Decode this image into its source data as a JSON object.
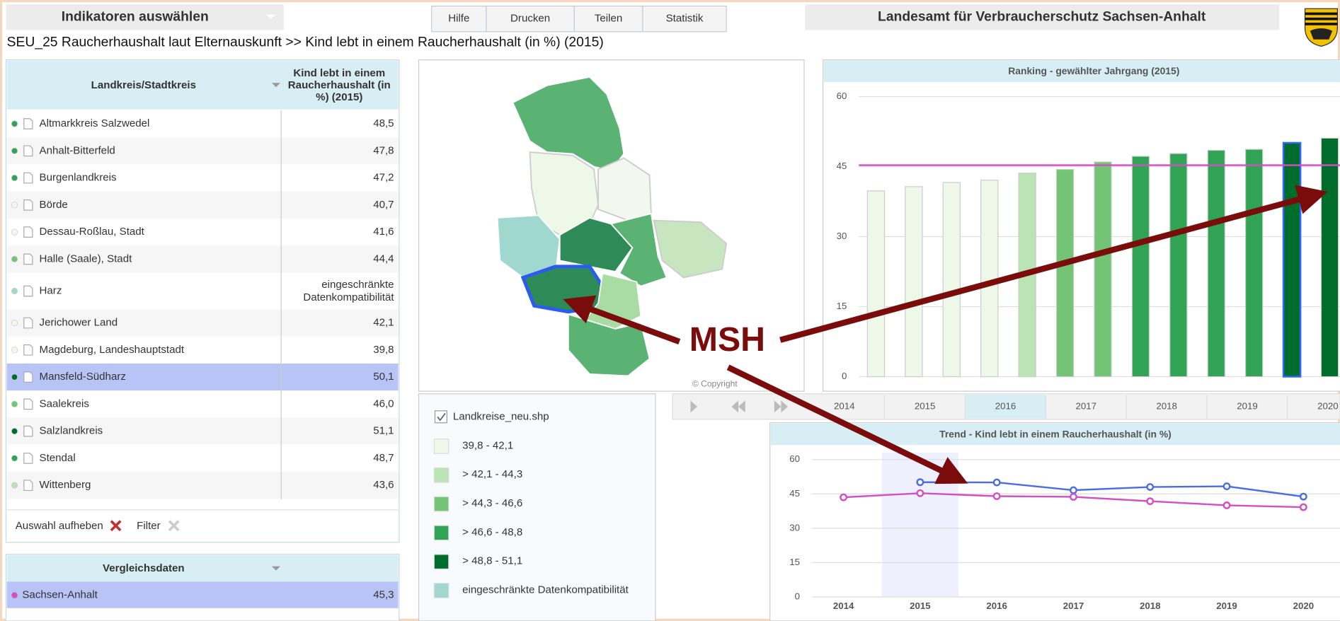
{
  "header": {
    "indicator_select": "Indikatoren auswählen",
    "buttons": [
      "Hilfe",
      "Drucken",
      "Teilen",
      "Statistik"
    ],
    "agency": "Landesamt für Verbraucherschutz Sachsen-Anhalt",
    "subtitle": "SEU_25 Raucherhaushalt laut Elternauskunft >> Kind lebt in einem Raucherhaushalt (in %) (2015)"
  },
  "table": {
    "header_name": "Landkreis/Stadtkreis",
    "header_value": [
      "Kind lebt in einem",
      "Raucherhaushalt (in",
      "%) (2015)"
    ],
    "rows": [
      {
        "name": "Altmarkkreis Salzwedel",
        "value": "48,5",
        "dot": "#31a354"
      },
      {
        "name": "Anhalt-Bitterfeld",
        "value": "47,8",
        "dot": "#31a354"
      },
      {
        "name": "Burgenlandkreis",
        "value": "47,2",
        "dot": "#31a354"
      },
      {
        "name": "Börde",
        "value": "40,7",
        "dot": "#f2f8ee"
      },
      {
        "name": "Dessau-Roßlau, Stadt",
        "value": "41,6",
        "dot": "#f2f8ee"
      },
      {
        "name": "Halle (Saale), Stadt",
        "value": "44,4",
        "dot": "#74c476"
      },
      {
        "name": "Harz",
        "value": [
          "eingeschränkte",
          "Datenkompatibilität"
        ],
        "dot": "#a0d8d0"
      },
      {
        "name": "Jerichower Land",
        "value": "42,1",
        "dot": "#f2f8ee"
      },
      {
        "name": "Magdeburg, Landeshauptstadt",
        "value": "39,8",
        "dot": "#f2f8ee"
      },
      {
        "name": "Mansfeld-Südharz",
        "value": "50,1",
        "dot": "#006d2c",
        "selected": true
      },
      {
        "name": "Saalekreis",
        "value": "46,0",
        "dot": "#74c476"
      },
      {
        "name": "Salzlandkreis",
        "value": "51,1",
        "dot": "#006d2c"
      },
      {
        "name": "Stendal",
        "value": "48,7",
        "dot": "#31a354"
      },
      {
        "name": "Wittenberg",
        "value": "43,6",
        "dot": "#bae4b3"
      }
    ],
    "clear_selection": "Auswahl aufheben",
    "filter": "Filter"
  },
  "comparison": {
    "title": "Vergleichsdaten",
    "name": "Sachsen-Anhalt",
    "value": "45,3",
    "dot": "#d24fc5"
  },
  "map": {
    "copyright": "© Copyright",
    "layer": "Landkreise_neu.shp",
    "legend": [
      {
        "label": "39,8 - 42,1",
        "color": "#edf8e9"
      },
      {
        "label": "> 42,1 - 44,3",
        "color": "#bae4b3"
      },
      {
        "label": "> 44,3 - 46,6",
        "color": "#74c476"
      },
      {
        "label": "> 46,6 - 48,8",
        "color": "#31a354"
      },
      {
        "label": "> 48,8 - 51,1",
        "color": "#006d2c"
      },
      {
        "label": "eingeschränkte Datenkompatibilität",
        "color": "#a0d8d0"
      }
    ]
  },
  "year_selector": {
    "years": [
      "2014",
      "2015",
      "2016",
      "2017",
      "2018",
      "2019",
      "2020"
    ],
    "selected": "2015"
  },
  "annotation": "MSH",
  "chart_data": [
    {
      "type": "bar",
      "title": "Ranking - gewählter  Jahrgang (2015)",
      "values": [
        39.8,
        40.7,
        41.6,
        42.1,
        43.6,
        44.4,
        46.0,
        47.2,
        47.8,
        48.5,
        48.7,
        50.1,
        51.1
      ],
      "colors": [
        "#edf8e9",
        "#edf8e9",
        "#edf8e9",
        "#edf8e9",
        "#bae4b3",
        "#74c476",
        "#74c476",
        "#31a354",
        "#31a354",
        "#31a354",
        "#31a354",
        "#006d2c",
        "#006d2c"
      ],
      "edgecolors": [
        "#cccccc",
        "#cccccc",
        "#cccccc",
        "#cccccc",
        "#cccccc",
        "#cccccc",
        "#cccccc",
        "#cccccc",
        "#cccccc",
        "#cccccc",
        "#cccccc",
        "#3366ff",
        "#cccccc"
      ],
      "reference_line": {
        "value": 45.3,
        "color": "#d24fc5"
      },
      "ylim": [
        0,
        60
      ],
      "yticks": [
        0,
        15,
        30,
        45,
        60
      ],
      "grid": true
    },
    {
      "type": "line",
      "title": "Trend  - Kind lebt in einem Raucherhaushalt (in %)",
      "categories": [
        "2014",
        "2015",
        "2016",
        "2017",
        "2018",
        "2019",
        "2020"
      ],
      "series": [
        {
          "name": "Mansfeld-Südharz",
          "color": "#4a6ee0",
          "values": [
            null,
            50.1,
            50.0,
            46.6,
            48.0,
            48.3,
            43.8
          ]
        },
        {
          "name": "Sachsen-Anhalt",
          "color": "#d24fc5",
          "values": [
            43.5,
            45.3,
            44.0,
            43.7,
            41.8,
            40.0,
            39.2
          ]
        }
      ],
      "highlight": "2015",
      "ylim": [
        0,
        60
      ],
      "yticks": [
        0,
        15,
        30,
        45,
        60
      ],
      "grid": true
    }
  ]
}
